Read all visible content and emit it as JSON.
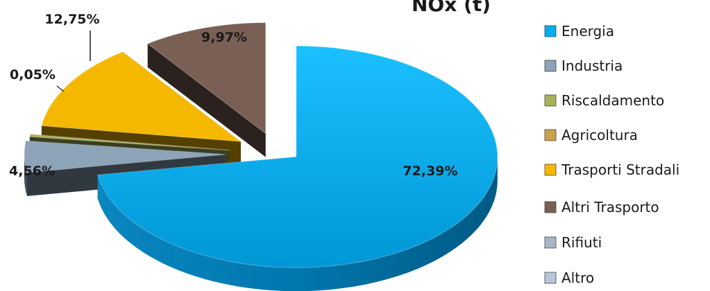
{
  "chart_data": {
    "type": "pie",
    "title": "NOx (t)",
    "categories": [
      "Energia",
      "Industria",
      "Riscaldamento",
      "Agricoltura",
      "Trasporti Stradali",
      "Altri Trasporto",
      "Rifiuti",
      "Altro"
    ],
    "values": [
      72.39,
      4.56,
      0.28,
      0.05,
      12.75,
      9.97,
      0,
      0
    ],
    "labels": [
      "72,39%",
      "4,56%",
      "",
      "0,05%",
      "12,75%",
      "9,97%",
      "",
      ""
    ],
    "colors": [
      "#00AEEF",
      "#8DA3B8",
      "#A8B05A",
      "#C9A24A",
      "#F5B800",
      "#7A5F55",
      "#A9B6C9",
      "#B7C6D8"
    ],
    "exploded": true,
    "three_d": true,
    "legend_position": "right"
  }
}
